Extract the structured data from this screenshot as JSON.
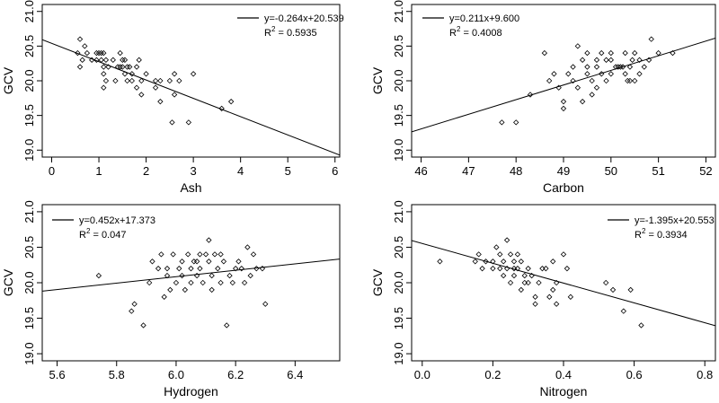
{
  "chart_data": [
    {
      "type": "scatter",
      "id": "ash",
      "xlabel": "Ash",
      "ylabel": "GCV",
      "xlim": [
        -0.2,
        6.1
      ],
      "ylim": [
        18.9,
        21.1
      ],
      "xticks": [
        0,
        1,
        2,
        3,
        4,
        5,
        6
      ],
      "yticks": [
        19.0,
        19.5,
        20.0,
        20.5,
        21.0
      ],
      "fit": {
        "slope": -0.264,
        "intercept": 20.539
      },
      "legend": {
        "equation": "y=-0.264x+20.539",
        "r2_prefix": "R",
        "r2_exp": "2",
        "r2_value": " = 0.5935"
      },
      "points": [
        [
          0.6,
          20.6
        ],
        [
          0.7,
          20.5
        ],
        [
          0.55,
          20.4
        ],
        [
          0.75,
          20.4
        ],
        [
          0.65,
          20.3
        ],
        [
          0.85,
          20.3
        ],
        [
          0.95,
          20.4
        ],
        [
          1.0,
          20.4
        ],
        [
          1.05,
          20.4
        ],
        [
          1.1,
          20.4
        ],
        [
          0.95,
          20.3
        ],
        [
          1.05,
          20.3
        ],
        [
          1.15,
          20.3
        ],
        [
          1.1,
          20.2
        ],
        [
          1.2,
          20.2
        ],
        [
          1.1,
          20.1
        ],
        [
          1.15,
          20.0
        ],
        [
          1.1,
          19.9
        ],
        [
          1.3,
          20.3
        ],
        [
          1.4,
          20.2
        ],
        [
          1.45,
          20.2
        ],
        [
          1.5,
          20.2
        ],
        [
          1.5,
          20.3
        ],
        [
          1.45,
          20.4
        ],
        [
          1.55,
          20.3
        ],
        [
          1.55,
          20.1
        ],
        [
          1.6,
          20.2
        ],
        [
          1.65,
          20.2
        ],
        [
          1.7,
          20.1
        ],
        [
          1.8,
          20.2
        ],
        [
          1.85,
          20.3
        ],
        [
          1.7,
          20.0
        ],
        [
          1.8,
          19.9
        ],
        [
          1.9,
          19.8
        ],
        [
          1.6,
          20.0
        ],
        [
          1.9,
          20.0
        ],
        [
          2.0,
          20.1
        ],
        [
          2.2,
          20.0
        ],
        [
          2.3,
          20.0
        ],
        [
          2.2,
          19.9
        ],
        [
          2.3,
          19.7
        ],
        [
          2.5,
          20.0
        ],
        [
          2.55,
          19.4
        ],
        [
          2.6,
          20.1
        ],
        [
          2.6,
          19.8
        ],
        [
          2.7,
          20.0
        ],
        [
          2.9,
          19.4
        ],
        [
          3.0,
          20.1
        ],
        [
          3.6,
          19.6
        ],
        [
          3.8,
          19.7
        ],
        [
          0.6,
          20.2
        ],
        [
          1.35,
          20.0
        ]
      ]
    },
    {
      "type": "scatter",
      "id": "carbon",
      "xlabel": "Carbon",
      "ylabel": "GCV",
      "xlim": [
        45.8,
        52.2
      ],
      "ylim": [
        18.9,
        21.1
      ],
      "xticks": [
        46,
        47,
        48,
        49,
        50,
        51,
        52
      ],
      "yticks": [
        19.0,
        19.5,
        20.0,
        20.5,
        21.0
      ],
      "fit": {
        "slope": 0.211,
        "intercept": 9.6
      },
      "legend": {
        "equation": "y=0.211x+9.600",
        "r2_prefix": "R",
        "r2_exp": "2",
        "r2_value": " = 0.4008"
      },
      "points": [
        [
          47.7,
          19.4
        ],
        [
          48.0,
          19.4
        ],
        [
          48.3,
          19.8
        ],
        [
          48.6,
          20.4
        ],
        [
          48.7,
          20.0
        ],
        [
          48.8,
          20.1
        ],
        [
          48.9,
          19.9
        ],
        [
          49.0,
          19.7
        ],
        [
          49.0,
          19.6
        ],
        [
          49.1,
          20.1
        ],
        [
          49.2,
          20.2
        ],
        [
          49.2,
          20.0
        ],
        [
          49.3,
          20.5
        ],
        [
          49.3,
          19.9
        ],
        [
          49.4,
          20.3
        ],
        [
          49.4,
          19.7
        ],
        [
          49.5,
          20.4
        ],
        [
          49.5,
          20.1
        ],
        [
          49.6,
          20.0
        ],
        [
          49.6,
          19.8
        ],
        [
          49.7,
          20.2
        ],
        [
          49.7,
          19.9
        ],
        [
          49.8,
          20.4
        ],
        [
          49.8,
          20.1
        ],
        [
          49.9,
          20.3
        ],
        [
          49.9,
          20.0
        ],
        [
          50.0,
          20.4
        ],
        [
          50.0,
          20.1
        ],
        [
          50.1,
          20.2
        ],
        [
          50.15,
          20.2
        ],
        [
          50.2,
          20.2
        ],
        [
          50.25,
          20.2
        ],
        [
          50.3,
          20.1
        ],
        [
          50.3,
          20.4
        ],
        [
          50.35,
          20.0
        ],
        [
          50.4,
          20.0
        ],
        [
          50.4,
          20.2
        ],
        [
          50.45,
          20.3
        ],
        [
          50.5,
          20.0
        ],
        [
          50.5,
          20.4
        ],
        [
          50.6,
          20.1
        ],
        [
          50.6,
          20.3
        ],
        [
          50.7,
          20.2
        ],
        [
          50.8,
          20.3
        ],
        [
          50.85,
          20.6
        ],
        [
          51.0,
          20.4
        ],
        [
          51.3,
          20.4
        ],
        [
          49.5,
          20.2
        ],
        [
          50.0,
          20.3
        ],
        [
          49.7,
          20.3
        ]
      ]
    },
    {
      "type": "scatter",
      "id": "hydrogen",
      "xlabel": "Hydrogen",
      "ylabel": "GCV",
      "xlim": [
        5.55,
        6.55
      ],
      "ylim": [
        18.9,
        21.1
      ],
      "xticks": [
        5.6,
        5.8,
        6.0,
        6.2,
        6.4
      ],
      "yticks": [
        19.0,
        19.5,
        20.0,
        20.5,
        21.0
      ],
      "fit": {
        "slope": 0.452,
        "intercept": 17.373
      },
      "legend": {
        "equation": "y=0.452x+17.373",
        "r2_prefix": "R",
        "r2_exp": "2",
        "r2_value": " = 0.047"
      },
      "points": [
        [
          5.74,
          20.1
        ],
        [
          5.85,
          19.6
        ],
        [
          5.86,
          19.7
        ],
        [
          5.89,
          19.4
        ],
        [
          5.91,
          20.0
        ],
        [
          5.92,
          20.3
        ],
        [
          5.94,
          20.2
        ],
        [
          5.95,
          20.4
        ],
        [
          5.96,
          19.8
        ],
        [
          5.97,
          20.1
        ],
        [
          5.97,
          20.2
        ],
        [
          5.98,
          19.9
        ],
        [
          5.99,
          20.4
        ],
        [
          6.0,
          20.0
        ],
        [
          6.01,
          20.2
        ],
        [
          6.02,
          20.3
        ],
        [
          6.02,
          20.1
        ],
        [
          6.03,
          19.9
        ],
        [
          6.04,
          20.4
        ],
        [
          6.05,
          20.0
        ],
        [
          6.05,
          20.2
        ],
        [
          6.06,
          20.3
        ],
        [
          6.07,
          20.1
        ],
        [
          6.08,
          20.4
        ],
        [
          6.08,
          20.2
        ],
        [
          6.09,
          20.0
        ],
        [
          6.1,
          20.4
        ],
        [
          6.11,
          20.6
        ],
        [
          6.11,
          20.3
        ],
        [
          6.12,
          20.1
        ],
        [
          6.12,
          19.9
        ],
        [
          6.13,
          20.4
        ],
        [
          6.14,
          20.2
        ],
        [
          6.15,
          20.0
        ],
        [
          6.15,
          20.4
        ],
        [
          6.16,
          20.3
        ],
        [
          6.17,
          19.4
        ],
        [
          6.18,
          20.1
        ],
        [
          6.19,
          20.0
        ],
        [
          6.2,
          20.2
        ],
        [
          6.21,
          20.3
        ],
        [
          6.22,
          20.2
        ],
        [
          6.23,
          20.0
        ],
        [
          6.24,
          20.5
        ],
        [
          6.25,
          20.1
        ],
        [
          6.26,
          20.4
        ],
        [
          6.27,
          20.2
        ],
        [
          6.29,
          20.2
        ],
        [
          6.3,
          19.7
        ],
        [
          6.07,
          20.3
        ]
      ]
    },
    {
      "type": "scatter",
      "id": "nitrogen",
      "xlabel": "Nitrogen",
      "ylabel": "GCV",
      "xlim": [
        -0.03,
        0.83
      ],
      "ylim": [
        18.9,
        21.1
      ],
      "xticks": [
        0.0,
        0.2,
        0.4,
        0.6,
        0.8
      ],
      "yticks": [
        19.0,
        19.5,
        20.0,
        20.5,
        21.0
      ],
      "fit": {
        "slope": -1.395,
        "intercept": 20.553
      },
      "legend": {
        "equation": "y=-1.395x+20.553",
        "r2_prefix": "R",
        "r2_exp": "2",
        "r2_value": " = 0.3934"
      },
      "points": [
        [
          0.05,
          20.3
        ],
        [
          0.15,
          20.3
        ],
        [
          0.16,
          20.4
        ],
        [
          0.17,
          20.2
        ],
        [
          0.18,
          20.3
        ],
        [
          0.2,
          20.2
        ],
        [
          0.21,
          20.5
        ],
        [
          0.22,
          20.2
        ],
        [
          0.22,
          20.4
        ],
        [
          0.23,
          20.3
        ],
        [
          0.23,
          20.1
        ],
        [
          0.24,
          20.6
        ],
        [
          0.24,
          20.2
        ],
        [
          0.25,
          20.4
        ],
        [
          0.25,
          20.0
        ],
        [
          0.26,
          20.3
        ],
        [
          0.26,
          20.1
        ],
        [
          0.27,
          20.4
        ],
        [
          0.27,
          20.2
        ],
        [
          0.28,
          19.9
        ],
        [
          0.28,
          20.3
        ],
        [
          0.29,
          20.0
        ],
        [
          0.29,
          20.1
        ],
        [
          0.3,
          20.2
        ],
        [
          0.3,
          20.0
        ],
        [
          0.31,
          20.1
        ],
        [
          0.32,
          19.8
        ],
        [
          0.32,
          19.7
        ],
        [
          0.33,
          20.0
        ],
        [
          0.34,
          20.2
        ],
        [
          0.35,
          20.2
        ],
        [
          0.36,
          19.8
        ],
        [
          0.37,
          20.3
        ],
        [
          0.37,
          19.9
        ],
        [
          0.38,
          20.0
        ],
        [
          0.38,
          19.7
        ],
        [
          0.4,
          20.4
        ],
        [
          0.41,
          20.2
        ],
        [
          0.42,
          19.8
        ],
        [
          0.52,
          20.0
        ],
        [
          0.54,
          19.9
        ],
        [
          0.57,
          19.6
        ],
        [
          0.59,
          19.9
        ],
        [
          0.62,
          19.4
        ],
        [
          0.2,
          20.3
        ],
        [
          0.26,
          20.2
        ]
      ]
    }
  ]
}
